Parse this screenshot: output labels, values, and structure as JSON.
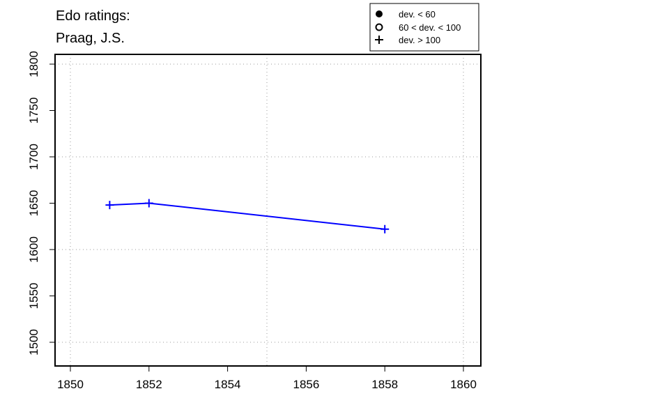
{
  "chart_data": {
    "type": "line",
    "title_lines": [
      "Edo ratings:",
      "Praag, J.S."
    ],
    "xlabel": "",
    "ylabel": "",
    "xlim": [
      1849.6,
      1860.4
    ],
    "ylim": [
      1475,
      1810
    ],
    "x_ticks": [
      1850,
      1852,
      1854,
      1856,
      1858,
      1860
    ],
    "y_ticks": [
      1500,
      1550,
      1600,
      1650,
      1700,
      1750,
      1800
    ],
    "x_grid": [
      1850,
      1855,
      1860
    ],
    "y_grid": [
      1500,
      1600,
      1700,
      1800
    ],
    "grid": true,
    "series": [
      {
        "x": [
          1851,
          1852,
          1858
        ],
        "y": [
          1648,
          1650,
          1622
        ],
        "marker": "plus",
        "color": "#0000ff"
      }
    ],
    "legend": {
      "placement": "top-right, above plot",
      "entries": [
        {
          "symbol": "filled-circle",
          "label": "dev. < 60"
        },
        {
          "symbol": "open-circle",
          "label": "60 < dev. < 100"
        },
        {
          "symbol": "plus",
          "label": "dev. > 100"
        }
      ]
    }
  }
}
